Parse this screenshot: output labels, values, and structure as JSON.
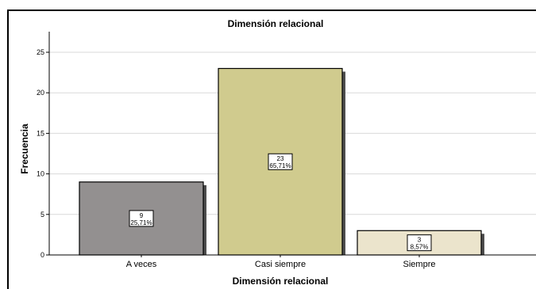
{
  "chart_data": {
    "type": "bar",
    "title": "Dimensión relacional",
    "xlabel": "Dimensión relacional",
    "ylabel": "Frecuencia",
    "categories": [
      "A veces",
      "Casi siempre",
      "Siempre"
    ],
    "values": [
      9,
      23,
      3
    ],
    "percent_labels": [
      "25,71%",
      "65,71%",
      "8,57%"
    ],
    "colors": [
      "#939090",
      "#d0cb8e",
      "#ebe4cc"
    ],
    "ylim": [
      0,
      28
    ],
    "yticks": [
      0,
      5,
      10,
      15,
      20,
      25
    ],
    "grid": true
  }
}
